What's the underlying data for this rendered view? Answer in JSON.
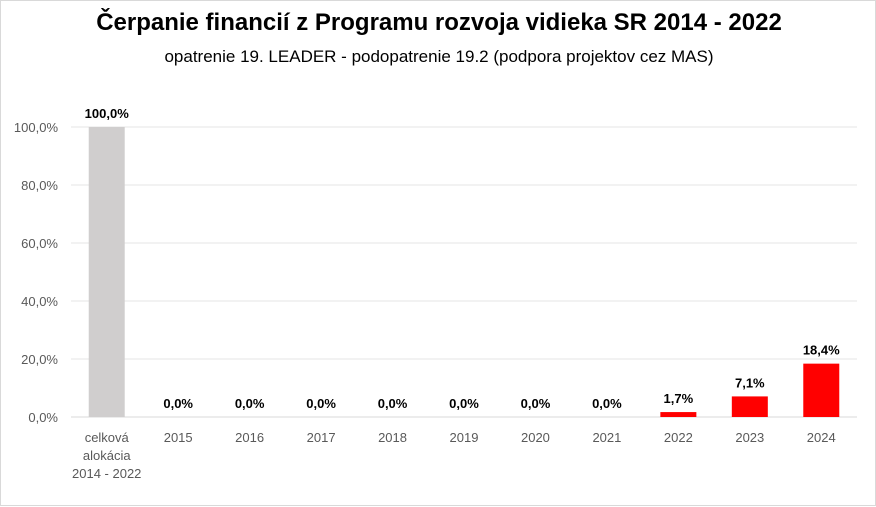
{
  "chart_data": {
    "type": "bar",
    "title": "Čerpanie financií z Programu rozvoja vidieka SR 2014 - 2022",
    "subtitle": "opatrenie 19. LEADER - podopatrenie 19.2 (podpora projektov cez MAS)",
    "categories": [
      "celková alokácia 2014 - 2022",
      "2015",
      "2016",
      "2017",
      "2018",
      "2019",
      "2020",
      "2021",
      "2022",
      "2023",
      "2024"
    ],
    "category_lines": [
      [
        "celková",
        "alokácia",
        "2014 - 2022"
      ],
      [
        "2015"
      ],
      [
        "2016"
      ],
      [
        "2017"
      ],
      [
        "2018"
      ],
      [
        "2019"
      ],
      [
        "2020"
      ],
      [
        "2021"
      ],
      [
        "2022"
      ],
      [
        "2023"
      ],
      [
        "2024"
      ]
    ],
    "values": [
      100.0,
      0.0,
      0.0,
      0.0,
      0.0,
      0.0,
      0.0,
      0.0,
      1.7,
      7.1,
      18.4
    ],
    "data_labels": [
      "100,0%",
      "0,0%",
      "0,0%",
      "0,0%",
      "0,0%",
      "0,0%",
      "0,0%",
      "0,0%",
      "1,7%",
      "7,1%",
      "18,4%"
    ],
    "colors": [
      "#d0cece",
      "#ff0000",
      "#ff0000",
      "#ff0000",
      "#ff0000",
      "#ff0000",
      "#ff0000",
      "#ff0000",
      "#ff0000",
      "#ff0000",
      "#ff0000"
    ],
    "ylim": [
      0,
      100
    ],
    "yticks": [
      0,
      20,
      40,
      60,
      80,
      100
    ],
    "ytick_labels": [
      "0,0%",
      "20,0%",
      "40,0%",
      "60,0%",
      "80,0%",
      "100,0%"
    ],
    "grid": true,
    "xlabel": "",
    "ylabel": ""
  }
}
